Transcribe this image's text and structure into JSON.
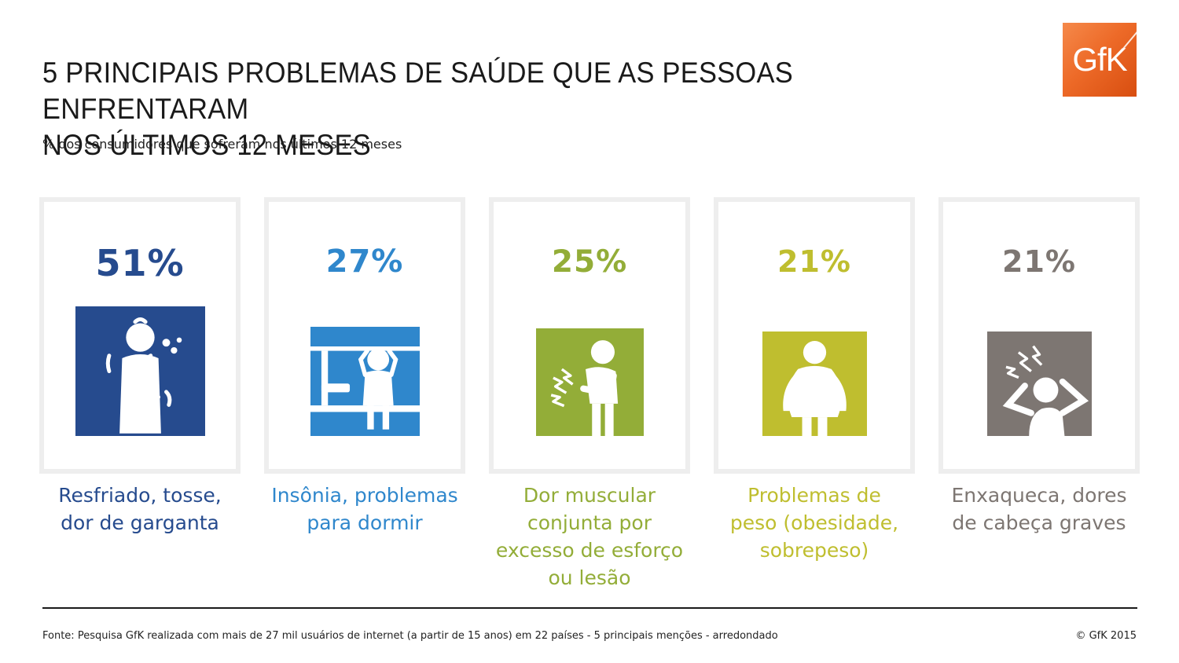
{
  "title_lines": [
    "5 PRINCIPAIS PROBLEMAS DE SAÚDE QUE AS PESSOAS ENFRENTARAM",
    "NOS ÚLTIMOS 12 MESES"
  ],
  "subtitle": "% dos consumidores que sofreram nos últimos 12 meses",
  "logo_text": "GfK",
  "footer": {
    "source": "Fonte: Pesquisa GfK realizada com mais de 27 mil usuários de internet (a partir de 15 anos) em 22 países - 5 principais menções - arredondado",
    "copyright": "© GfK 2015"
  },
  "chart_data": {
    "type": "table",
    "unit": "%",
    "items": [
      {
        "value": 51,
        "value_label": "51%",
        "label_lines": [
          "Resfriado, tosse,",
          "dor de garganta"
        ],
        "color": "#264b8e",
        "icon": "cold-cough-icon"
      },
      {
        "value": 27,
        "value_label": "27%",
        "label_lines": [
          "Insônia, problemas",
          "para dormir"
        ],
        "color": "#2f87cc",
        "icon": "insomnia-icon"
      },
      {
        "value": 25,
        "value_label": "25%",
        "label_lines": [
          "Dor muscular",
          "conjunta por",
          "excesso de esforço",
          "ou lesão"
        ],
        "color": "#93ad38",
        "icon": "muscle-pain-icon"
      },
      {
        "value": 21,
        "value_label": "21%",
        "label_lines": [
          "Problemas de",
          "peso (obesidade,",
          "sobrepeso)"
        ],
        "color": "#bfbe2f",
        "icon": "weight-problem-icon"
      },
      {
        "value": 21,
        "value_label": "21%",
        "label_lines": [
          "Enxaqueca, dores",
          "de cabeça graves"
        ],
        "color": "#7d7672",
        "icon": "migraine-icon"
      }
    ]
  }
}
